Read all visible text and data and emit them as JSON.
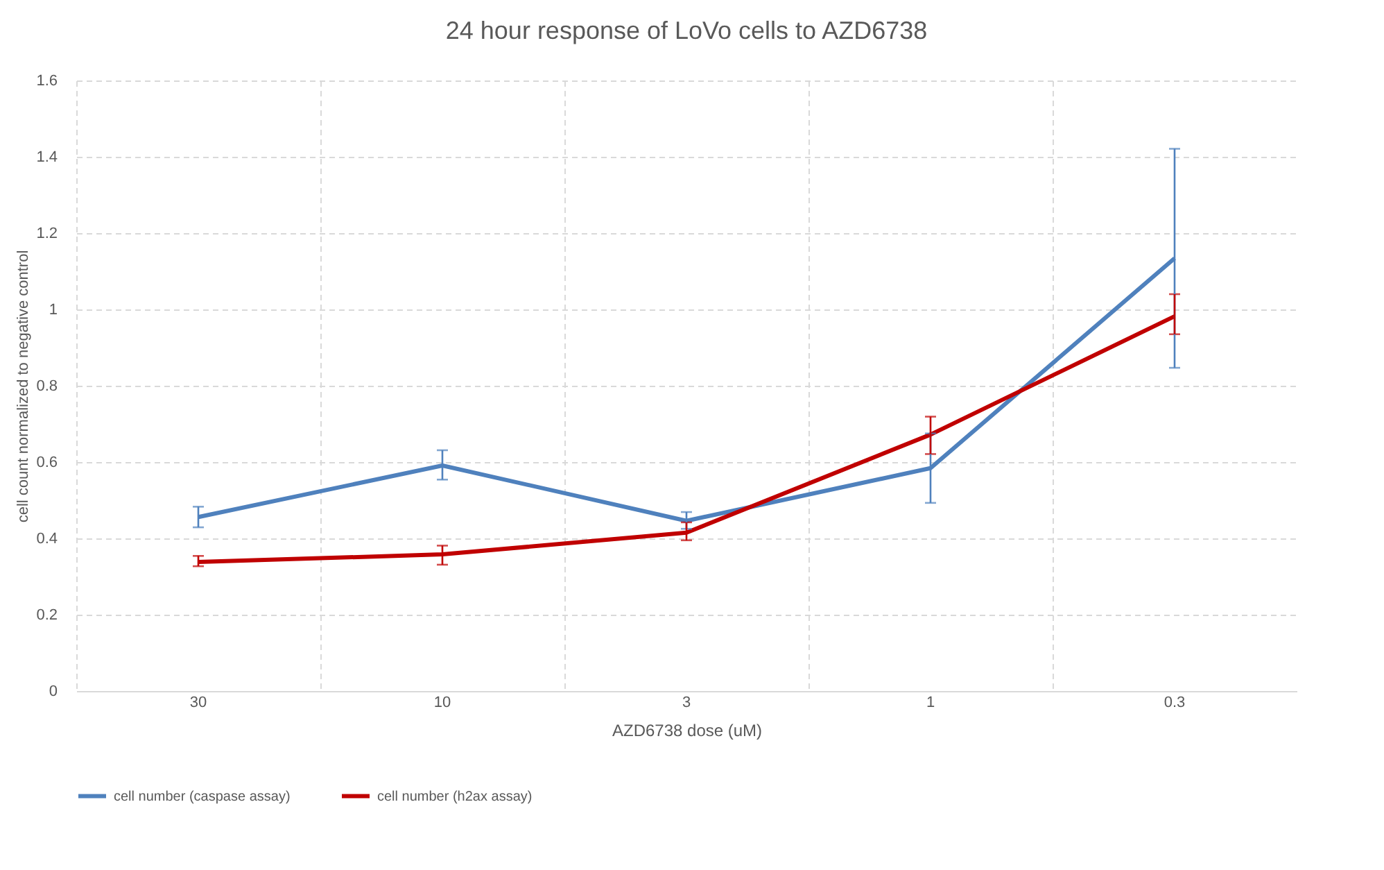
{
  "chart_data": {
    "type": "line",
    "title": "24 hour response of LoVo cells to AZD6738",
    "xlabel": "AZD6738 dose (uM)",
    "ylabel": "cell count normalized to negative control",
    "categories": [
      "30",
      "10",
      "3",
      "1",
      "0.3"
    ],
    "series": [
      {
        "name": "cell number (caspase assay)",
        "color": "#4f81bd",
        "values": [
          0.456,
          0.591,
          0.446,
          0.584,
          1.134
        ],
        "errors": [
          [
            0.429,
            0.483
          ],
          [
            0.554,
            0.631
          ],
          [
            0.425,
            0.469
          ],
          [
            0.493,
            0.675
          ],
          [
            0.847,
            1.421
          ]
        ]
      },
      {
        "name": "cell number (h2ax assay)",
        "color": "#c00000",
        "values": [
          0.338,
          0.358,
          0.415,
          0.672,
          0.982
        ],
        "errors": [
          [
            0.327,
            0.354
          ],
          [
            0.331,
            0.381
          ],
          [
            0.395,
            0.442
          ],
          [
            0.621,
            0.719
          ],
          [
            0.935,
            1.04
          ]
        ]
      }
    ],
    "ylim": [
      0,
      1.6
    ],
    "yticks": [
      0,
      0.2,
      0.4,
      0.6,
      0.8,
      1,
      1.2,
      1.4,
      1.6
    ],
    "grid": true,
    "legend": "bottom",
    "marker": "none",
    "line_style": "solid"
  }
}
